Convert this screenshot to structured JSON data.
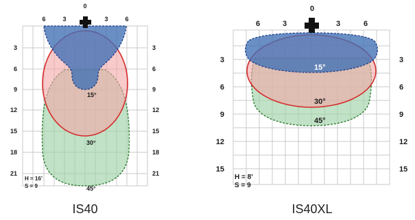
{
  "left": {
    "caption": "IS40",
    "top_center_label": "0",
    "top_labels": [
      "6",
      "3",
      "3",
      "6"
    ],
    "left_labels": [
      "3",
      "6",
      "9",
      "12",
      "15",
      "18",
      "21"
    ],
    "right_labels": [
      "3",
      "6",
      "9",
      "12",
      "15",
      "18",
      "21"
    ],
    "angle_15": "15°",
    "angle_30": "30°",
    "angle_45": "45°",
    "height_note": "H = 16’",
    "spacing_note": "S = 9"
  },
  "right": {
    "caption": "IS40XL",
    "top_center_label": "0",
    "top_labels": [
      "6",
      "3",
      "3",
      "6"
    ],
    "left_labels": [
      "3",
      "6",
      "9",
      "12",
      "15"
    ],
    "right_labels": [
      "3",
      "6",
      "9",
      "12",
      "15"
    ],
    "angle_15": "15°",
    "angle_30": "30°",
    "angle_45": "45°",
    "height_note": "H = 8’",
    "spacing_note": "S = 9"
  },
  "colors": {
    "beam_15": "#3f6fb5",
    "beam_30": "#f4a6a6",
    "beam_30_stroke": "#d42a2a",
    "beam_45": "#9fd3a8",
    "beam_45_stroke": "#2e7d32",
    "grid": "#c8c8c8",
    "fixture": "#111111"
  }
}
